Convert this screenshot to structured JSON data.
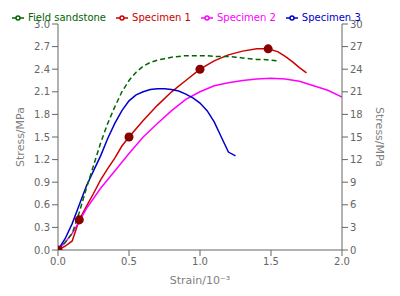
{
  "chart_data": {
    "type": "line",
    "xlabel": "Strain/10⁻³",
    "ylabel": "Stress/MPa",
    "y2label": "Stress/MPa",
    "xlim": [
      0.0,
      2.0
    ],
    "ylim": [
      0.0,
      3.0
    ],
    "y2lim": [
      0,
      30
    ],
    "xticks": [
      {
        "value": 0.0,
        "label": "0.0"
      },
      0.5,
      {
        "value": 1.0,
        "label": "1.0"
      },
      1.5,
      {
        "value": 2.0,
        "label": "2.0"
      }
    ],
    "yticks": [
      {
        "value": 0.0,
        "label": "0.0"
      },
      0.3,
      0.6,
      0.9,
      {
        "value": 1.2,
        "label": "1.2"
      },
      1.5,
      1.8,
      2.1,
      2.4,
      2.7,
      {
        "value": 3.0,
        "label": "3.0"
      }
    ],
    "y2ticks": [
      0,
      3,
      6,
      9,
      12,
      15,
      18,
      21,
      24,
      27,
      30
    ],
    "grid": false,
    "legend": "upper left",
    "series": [
      {
        "name": "Specimen 1",
        "color": "#cc0000",
        "line_style": "solid",
        "x": [
          0.0,
          0.05,
          0.1,
          0.15,
          0.2,
          0.25,
          0.3,
          0.35,
          0.4,
          0.45,
          0.5,
          0.6,
          0.7,
          0.8,
          0.9,
          1.0,
          1.1,
          1.2,
          1.3,
          1.4,
          1.48,
          1.55,
          1.6,
          1.65,
          1.7,
          1.75
        ],
        "values": [
          0.0,
          0.05,
          0.12,
          0.4,
          0.58,
          0.75,
          0.93,
          1.08,
          1.22,
          1.38,
          1.5,
          1.72,
          1.92,
          2.1,
          2.25,
          2.4,
          2.51,
          2.59,
          2.64,
          2.67,
          2.67,
          2.63,
          2.57,
          2.5,
          2.42,
          2.35
        ]
      },
      {
        "name": "Specimen 2",
        "color": "#ff00ff",
        "line_style": "solid",
        "x": [
          0.0,
          0.05,
          0.1,
          0.15,
          0.2,
          0.3,
          0.4,
          0.5,
          0.6,
          0.7,
          0.8,
          0.9,
          1.0,
          1.1,
          1.2,
          1.3,
          1.4,
          1.5,
          1.6,
          1.7,
          1.8,
          1.9,
          2.0
        ],
        "values": [
          0.0,
          0.1,
          0.22,
          0.38,
          0.55,
          0.82,
          1.05,
          1.28,
          1.5,
          1.68,
          1.85,
          2.0,
          2.1,
          2.18,
          2.22,
          2.25,
          2.27,
          2.28,
          2.27,
          2.24,
          2.18,
          2.12,
          2.03
        ]
      },
      {
        "name": "Specimen 3",
        "color": "#0000cc",
        "line_style": "solid",
        "x": [
          0.0,
          0.05,
          0.1,
          0.15,
          0.2,
          0.25,
          0.3,
          0.35,
          0.4,
          0.45,
          0.5,
          0.55,
          0.6,
          0.65,
          0.7,
          0.75,
          0.8,
          0.85,
          0.9,
          0.95,
          1.0,
          1.05,
          1.1,
          1.15,
          1.2,
          1.25
        ],
        "values": [
          0.0,
          0.15,
          0.35,
          0.6,
          0.85,
          1.05,
          1.25,
          1.48,
          1.68,
          1.85,
          1.98,
          2.06,
          2.1,
          2.13,
          2.14,
          2.14,
          2.13,
          2.11,
          2.07,
          2.02,
          1.95,
          1.85,
          1.7,
          1.5,
          1.3,
          1.25
        ]
      },
      {
        "name": "Field sandstone",
        "color": "#006600",
        "line_style": "dashed",
        "x": [
          0.0,
          0.05,
          0.1,
          0.15,
          0.2,
          0.25,
          0.3,
          0.35,
          0.4,
          0.45,
          0.5,
          0.55,
          0.6,
          0.65,
          0.7,
          0.75,
          0.8,
          0.85,
          0.9,
          0.95,
          1.0,
          1.05,
          1.1,
          1.15,
          1.2,
          1.25,
          1.3,
          1.35,
          1.4,
          1.45,
          1.5,
          1.55
        ],
        "values": [
          0.0,
          0.1,
          0.22,
          0.5,
          0.82,
          1.12,
          1.42,
          1.68,
          1.9,
          2.1,
          2.25,
          2.36,
          2.44,
          2.49,
          2.52,
          2.54,
          2.56,
          2.57,
          2.58,
          2.58,
          2.58,
          2.58,
          2.57,
          2.57,
          2.57,
          2.56,
          2.55,
          2.54,
          2.53,
          2.53,
          2.52,
          2.51
        ]
      }
    ],
    "marker_points": {
      "x": [
        0.0,
        0.15,
        0.5,
        1.0,
        1.48
      ],
      "y": [
        0.0,
        0.4,
        1.5,
        2.4,
        2.67
      ],
      "color": "#880000",
      "marker": "circle"
    }
  }
}
